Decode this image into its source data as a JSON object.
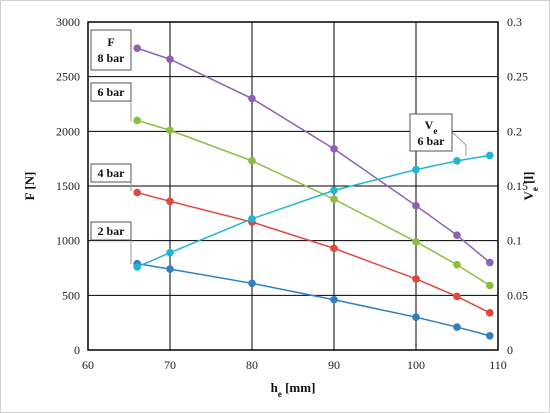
{
  "chart_data": {
    "type": "line",
    "xlabel": "h",
    "xlabel_sub": "e",
    "xlabel_unit": " [mm]",
    "ylabel": "F [N]",
    "y2label": "V",
    "y2label_sub": "e",
    "y2label_unit": " [l]",
    "xlim": [
      60,
      110
    ],
    "ylim": [
      0,
      3000
    ],
    "y2lim": [
      0,
      0.3
    ],
    "xticks": [
      60,
      70,
      80,
      90,
      100,
      110
    ],
    "yticks": [
      0,
      500,
      1000,
      1500,
      2000,
      2500,
      3000
    ],
    "y2ticks": [
      "0",
      "0.05",
      "0.1",
      "0.15",
      "0.2",
      "0.25",
      "0.3"
    ],
    "grid": true,
    "series": [
      {
        "name": "8 bar",
        "label_lines": [
          "F",
          "8 bar"
        ],
        "axis": "left",
        "color": "#8e5fb5",
        "x": [
          66,
          70,
          80,
          90,
          100,
          105,
          109
        ],
        "y": [
          2760,
          2660,
          2300,
          1840,
          1320,
          1050,
          800
        ]
      },
      {
        "name": "6 bar",
        "label_lines": [
          "6 bar"
        ],
        "axis": "left",
        "color": "#8cbe3e",
        "x": [
          66,
          70,
          80,
          90,
          100,
          105,
          109
        ],
        "y": [
          2100,
          2010,
          1730,
          1380,
          990,
          780,
          590
        ]
      },
      {
        "name": "4 bar",
        "label_lines": [
          "4 bar"
        ],
        "axis": "left",
        "color": "#e0463c",
        "x": [
          66,
          70,
          80,
          90,
          100,
          105,
          109
        ],
        "y": [
          1440,
          1360,
          1170,
          930,
          650,
          490,
          340
        ]
      },
      {
        "name": "2 bar",
        "label_lines": [
          "2 bar"
        ],
        "axis": "left",
        "color": "#2f7fc1",
        "x": [
          66,
          70,
          80,
          90,
          100,
          105,
          109
        ],
        "y": [
          790,
          740,
          610,
          460,
          300,
          210,
          130
        ]
      },
      {
        "name": "Ve 6 bar",
        "label_lines": [
          "V",
          "6 bar"
        ],
        "label_sub": "e",
        "axis": "right",
        "color": "#1fb6d4",
        "x": [
          66,
          70,
          80,
          90,
          100,
          105,
          109
        ],
        "y": [
          0.076,
          0.089,
          0.12,
          0.146,
          0.165,
          0.173,
          0.178
        ]
      }
    ]
  }
}
